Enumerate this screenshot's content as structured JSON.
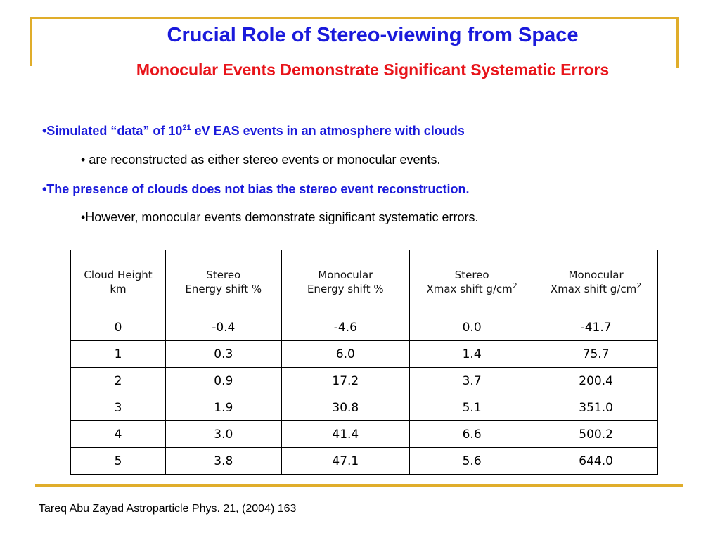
{
  "slide": {
    "title": "Crucial Role of Stereo-viewing from Space",
    "subtitle": "Monocular Events Demonstrate Significant Systematic Errors",
    "colors": {
      "title": "#1a1adb",
      "subtitle": "#e8141a",
      "accent_rule": "#e0ad2a"
    }
  },
  "bullets": [
    {
      "prefix": "•Simulated “data” of 10",
      "sup": "21",
      "suffix": " eV EAS events in an atmosphere with clouds"
    },
    {
      "text": "• are reconstructed as either stereo events or monocular events."
    },
    {
      "text": "•The presence of clouds does not bias the stereo event reconstruction."
    },
    {
      "text": "•However, monocular events demonstrate significant systematic errors."
    }
  ],
  "table": {
    "headers": [
      {
        "line1": "Cloud Height",
        "line2": "km"
      },
      {
        "line1": "Stereo",
        "line2": "Energy shift %"
      },
      {
        "line1": "Monocular",
        "line2": "Energy shift %"
      },
      {
        "line1": "Stereo",
        "line2": "Xmax shift g/cm",
        "sup": "2"
      },
      {
        "line1": "Monocular",
        "line2": "Xmax shift g/cm",
        "sup": "2"
      }
    ],
    "rows": [
      [
        "0",
        "-0.4",
        "-4.6",
        "0.0",
        "-41.7"
      ],
      [
        "1",
        "0.3",
        "6.0",
        "1.4",
        "75.7"
      ],
      [
        "2",
        "0.9",
        "17.2",
        "3.7",
        "200.4"
      ],
      [
        "3",
        "1.9",
        "30.8",
        "5.1",
        "351.0"
      ],
      [
        "4",
        "3.0",
        "41.4",
        "6.6",
        "500.2"
      ],
      [
        "5",
        "3.8",
        "47.1",
        "5.6",
        "644.0"
      ]
    ]
  },
  "citation": "Tareq Abu Zayad Astroparticle Phys. 21, (2004) 163"
}
